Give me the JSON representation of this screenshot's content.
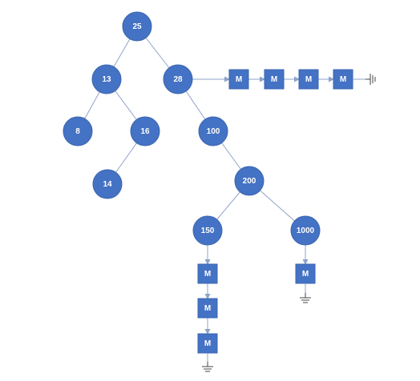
{
  "tree": {
    "nodes": [
      {
        "id": "n25",
        "label": "25"
      },
      {
        "id": "n13",
        "label": "13"
      },
      {
        "id": "n28",
        "label": "28"
      },
      {
        "id": "n8",
        "label": "8"
      },
      {
        "id": "n16",
        "label": "16"
      },
      {
        "id": "n100",
        "label": "100"
      },
      {
        "id": "n14",
        "label": "14"
      },
      {
        "id": "n200",
        "label": "200"
      },
      {
        "id": "n150",
        "label": "150"
      },
      {
        "id": "n1000",
        "label": "1000"
      }
    ],
    "edges": [
      [
        "n25",
        "n13"
      ],
      [
        "n25",
        "n28"
      ],
      [
        "n13",
        "n8"
      ],
      [
        "n13",
        "n16"
      ],
      [
        "n16",
        "n14"
      ],
      [
        "n28",
        "n100"
      ],
      [
        "n100",
        "n200"
      ],
      [
        "n200",
        "n150"
      ],
      [
        "n200",
        "n1000"
      ]
    ]
  },
  "chains": [
    {
      "id": "chain-28",
      "attached_to": "n28",
      "direction": "right",
      "items": [
        "M",
        "M",
        "M",
        "M"
      ],
      "terminator": "ground"
    },
    {
      "id": "chain-150",
      "attached_to": "n150",
      "direction": "down",
      "items": [
        "M",
        "M",
        "M"
      ],
      "terminator": "ground"
    },
    {
      "id": "chain-1000",
      "attached_to": "n1000",
      "direction": "down",
      "items": [
        "M"
      ],
      "terminator": "ground"
    }
  ],
  "colors": {
    "node_fill": "#4472c4",
    "edge": "#8ea3c7",
    "label": "#ffffff",
    "ground": "#444444"
  }
}
